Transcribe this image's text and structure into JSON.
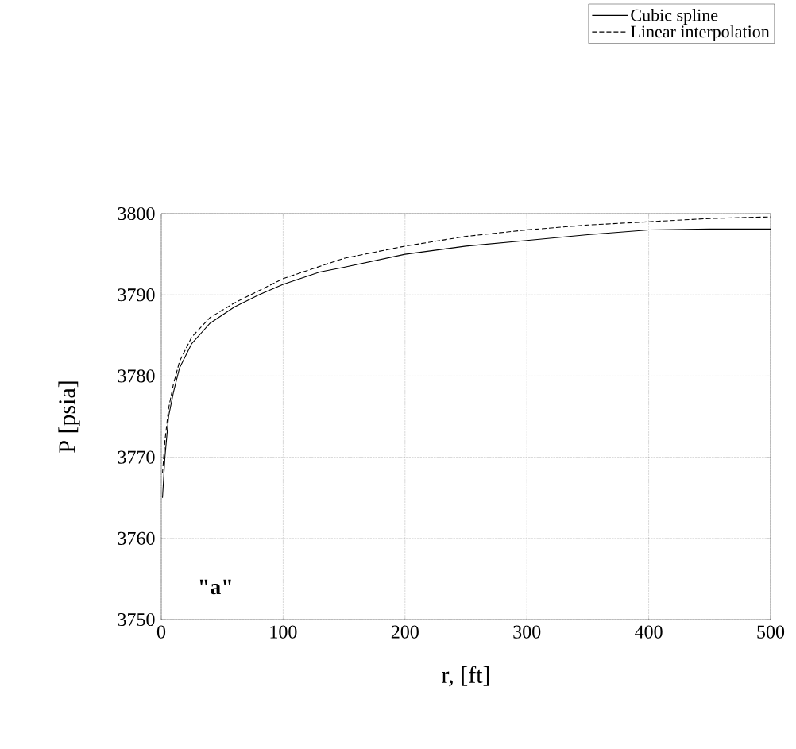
{
  "chart_data": {
    "type": "line",
    "xlabel": "r, [ft]",
    "ylabel": "P [psia]",
    "xlim": [
      0,
      500
    ],
    "ylim": [
      3750,
      3800
    ],
    "xticks": [
      0,
      100,
      200,
      300,
      400,
      500
    ],
    "yticks": [
      3750,
      3760,
      3770,
      3780,
      3790,
      3800
    ],
    "grid": true,
    "legend": "top right",
    "annotations": [
      "\"a\""
    ],
    "series": [
      {
        "name": "Cubic spline",
        "color": "#000000",
        "line_style": "solid",
        "x": [
          1,
          3,
          6,
          10,
          15,
          25,
          40,
          60,
          80,
          100,
          130,
          150,
          200,
          250,
          300,
          350,
          400,
          450,
          500
        ],
        "values": [
          3765,
          3770,
          3775,
          3778,
          3781,
          3784,
          3786.5,
          3788.5,
          3790,
          3791.3,
          3792.8,
          3793.4,
          3795,
          3796,
          3796.7,
          3797.4,
          3798,
          3798.1,
          3798.1
        ]
      },
      {
        "name": "Linear interpolation",
        "color": "#000000",
        "line_style": "dashed",
        "x": [
          1,
          3,
          6,
          10,
          15,
          25,
          40,
          60,
          80,
          100,
          150,
          200,
          250,
          300,
          350,
          400,
          450,
          500
        ],
        "values": [
          3768,
          3772,
          3776,
          3779,
          3781.8,
          3784.8,
          3787.2,
          3789,
          3790.5,
          3792,
          3794.5,
          3796,
          3797.2,
          3798,
          3798.6,
          3799,
          3799.4,
          3799.6
        ]
      }
    ]
  }
}
